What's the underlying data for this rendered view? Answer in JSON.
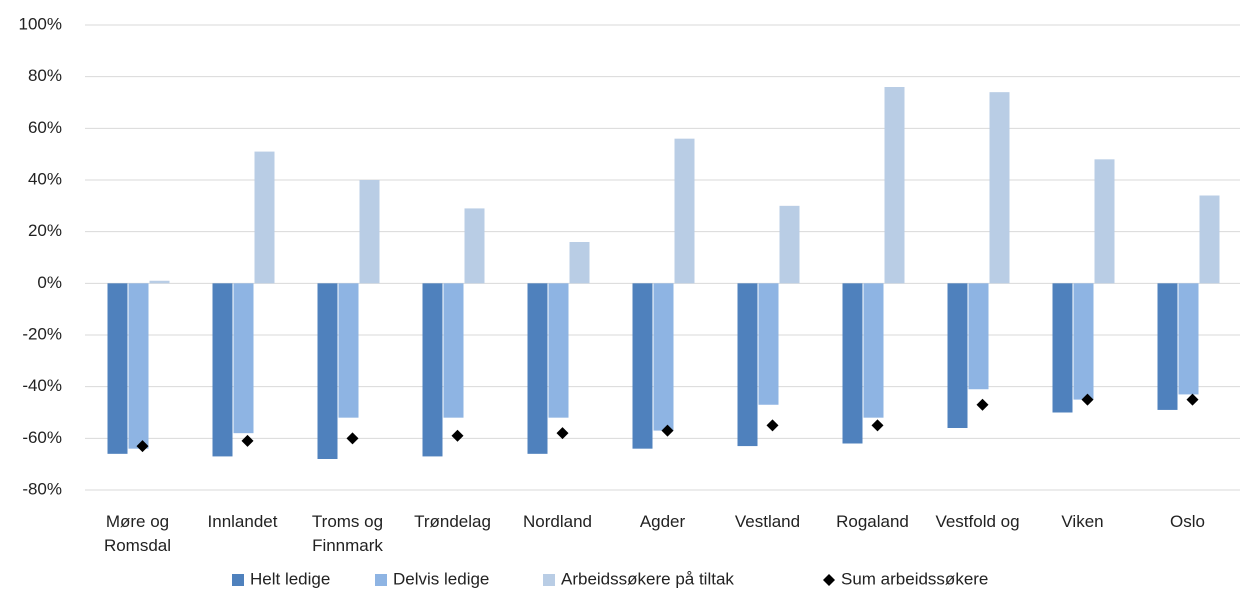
{
  "chart_data": {
    "type": "bar",
    "categories": [
      "Møre og Romsdal",
      "Innlandet",
      "Troms og Finnmark",
      "Trøndelag",
      "Nordland",
      "Agder",
      "Vestland",
      "Rogaland",
      "Vestfold og",
      "Viken",
      "Oslo"
    ],
    "series": [
      {
        "name": "Helt ledige",
        "color": "#4f81bd",
        "type": "bar",
        "values": [
          -66,
          -67,
          -68,
          -67,
          -66,
          -64,
          -63,
          -62,
          -56,
          -50,
          -49
        ]
      },
      {
        "name": "Delvis ledige",
        "color": "#8eb4e3",
        "type": "bar",
        "values": [
          -64,
          -58,
          -52,
          -52,
          -52,
          -57,
          -47,
          -52,
          -41,
          -45,
          -43
        ]
      },
      {
        "name": "Arbeidssøkere på tiltak",
        "color": "#b9cde5",
        "type": "bar",
        "values": [
          1,
          51,
          40,
          29,
          16,
          56,
          30,
          76,
          74,
          48,
          34
        ]
      },
      {
        "name": "Sum arbeidssøkere",
        "color": "#000000",
        "type": "scatter",
        "values": [
          -63,
          -61,
          -60,
          -59,
          -58,
          -57,
          -55,
          -55,
          -47,
          -45,
          -45
        ]
      }
    ],
    "ylim": [
      -80,
      100
    ],
    "yticks": [
      {
        "value": -80,
        "label": "-80%"
      },
      {
        "value": -60,
        "label": "-60%"
      },
      {
        "value": -40,
        "label": "-40%"
      },
      {
        "value": -20,
        "label": "-20%"
      },
      {
        "value": 0,
        "label": "0%"
      },
      {
        "value": 20,
        "label": "20%"
      },
      {
        "value": 40,
        "label": "40%"
      },
      {
        "value": 60,
        "label": "60%"
      },
      {
        "value": 80,
        "label": "80%"
      },
      {
        "value": 100,
        "label": "100%"
      }
    ],
    "grid": true
  }
}
